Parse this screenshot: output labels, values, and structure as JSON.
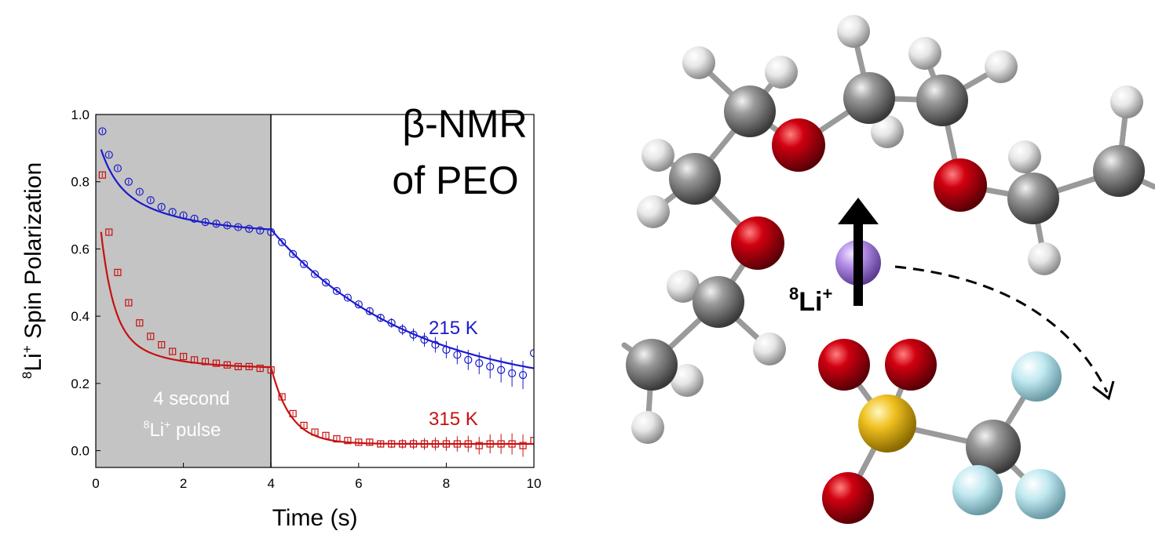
{
  "heading": {
    "line1": "β-NMR",
    "line2": "of PEO"
  },
  "chart_data": {
    "type": "scatter",
    "title": "",
    "xlabel": "Time (s)",
    "ylabel": {
      "sup": "8",
      "main": "Li",
      "sup2": "+",
      "rest": " Spin Polarization"
    },
    "xlim": [
      0,
      10
    ],
    "ylim": [
      -0.05,
      1.0
    ],
    "x_ticks": [
      "0",
      "2",
      "4",
      "6",
      "8",
      "10"
    ],
    "y_ticks": [
      "0.0",
      "0.2",
      "0.4",
      "0.6",
      "0.8",
      "1.0"
    ],
    "pulse_region": {
      "x_start": 0,
      "x_end": 4,
      "label_line1": "4 second",
      "label_line2_sup": "8",
      "label_line2_main": "Li",
      "label_line2_sup2": "+",
      "label_line2_rest": " pulse"
    },
    "series": [
      {
        "name": "215 K",
        "color": "#1a1acc",
        "marker": "circle",
        "model": {
          "during": {
            "start": 0.95,
            "plateau": 0.645,
            "tau1": 0.35,
            "frac1": 0.48,
            "tau2": 1.6
          },
          "after": {
            "end": 0.17,
            "tau": 3.2
          }
        },
        "points": [
          [
            0.15,
            0.95
          ],
          [
            0.3,
            0.88
          ],
          [
            0.5,
            0.84
          ],
          [
            0.75,
            0.8
          ],
          [
            1.0,
            0.77
          ],
          [
            1.25,
            0.745
          ],
          [
            1.5,
            0.725
          ],
          [
            1.75,
            0.71
          ],
          [
            2.0,
            0.7
          ],
          [
            2.25,
            0.69
          ],
          [
            2.5,
            0.68
          ],
          [
            2.75,
            0.675
          ],
          [
            3.0,
            0.67
          ],
          [
            3.25,
            0.665
          ],
          [
            3.5,
            0.66
          ],
          [
            3.75,
            0.655
          ],
          [
            4.0,
            0.65
          ],
          [
            4.25,
            0.62
          ],
          [
            4.5,
            0.585
          ],
          [
            4.75,
            0.555
          ],
          [
            5.0,
            0.525
          ],
          [
            5.25,
            0.5
          ],
          [
            5.5,
            0.475
          ],
          [
            5.75,
            0.455
          ],
          [
            6.0,
            0.435
          ],
          [
            6.25,
            0.415
          ],
          [
            6.5,
            0.395
          ],
          [
            6.75,
            0.38
          ],
          [
            7.0,
            0.36
          ],
          [
            7.25,
            0.345
          ],
          [
            7.5,
            0.33
          ],
          [
            7.75,
            0.315
          ],
          [
            8.0,
            0.3
          ],
          [
            8.25,
            0.285
          ],
          [
            8.5,
            0.27
          ],
          [
            8.75,
            0.26
          ],
          [
            9.0,
            0.25
          ],
          [
            9.25,
            0.24
          ],
          [
            9.5,
            0.23
          ],
          [
            9.75,
            0.225
          ],
          [
            10.0,
            0.29
          ]
        ]
      },
      {
        "name": "315 K",
        "color": "#c81010",
        "marker": "square",
        "model": {
          "during": {
            "start": 0.82,
            "plateau": 0.245,
            "tau1": 0.28,
            "frac1": 0.78,
            "tau2": 1.1
          },
          "after": {
            "end": 0.02,
            "tau": 0.45
          }
        },
        "points": [
          [
            0.15,
            0.82
          ],
          [
            0.3,
            0.65
          ],
          [
            0.5,
            0.53
          ],
          [
            0.75,
            0.44
          ],
          [
            1.0,
            0.38
          ],
          [
            1.25,
            0.34
          ],
          [
            1.5,
            0.315
          ],
          [
            1.75,
            0.295
          ],
          [
            2.0,
            0.28
          ],
          [
            2.25,
            0.27
          ],
          [
            2.5,
            0.265
          ],
          [
            2.75,
            0.26
          ],
          [
            3.0,
            0.255
          ],
          [
            3.25,
            0.25
          ],
          [
            3.5,
            0.25
          ],
          [
            3.75,
            0.245
          ],
          [
            4.0,
            0.24
          ],
          [
            4.25,
            0.16
          ],
          [
            4.5,
            0.11
          ],
          [
            4.75,
            0.075
          ],
          [
            5.0,
            0.055
          ],
          [
            5.25,
            0.045
          ],
          [
            5.5,
            0.035
          ],
          [
            5.75,
            0.03
          ],
          [
            6.0,
            0.025
          ],
          [
            6.25,
            0.025
          ],
          [
            6.5,
            0.02
          ],
          [
            6.75,
            0.02
          ],
          [
            7.0,
            0.02
          ],
          [
            7.25,
            0.02
          ],
          [
            7.5,
            0.02
          ],
          [
            7.75,
            0.02
          ],
          [
            8.0,
            0.02
          ],
          [
            8.25,
            0.02
          ],
          [
            8.5,
            0.02
          ],
          [
            8.75,
            0.015
          ],
          [
            9.0,
            0.02
          ],
          [
            9.25,
            0.02
          ],
          [
            9.5,
            0.02
          ],
          [
            9.75,
            0.015
          ],
          [
            10.0,
            0.03
          ]
        ]
      }
    ]
  },
  "molecule": {
    "ion_label": {
      "sup": "8",
      "main": "Li",
      "sup2": "+"
    },
    "atom_colors": {
      "carbon": "#8a8a8a",
      "hydrogen": "#e8e8e8",
      "oxygen": "#c00010",
      "lithium": "#b48ee8",
      "sulfur": "#f0c020",
      "fluorine": "#bfe8f0"
    }
  }
}
